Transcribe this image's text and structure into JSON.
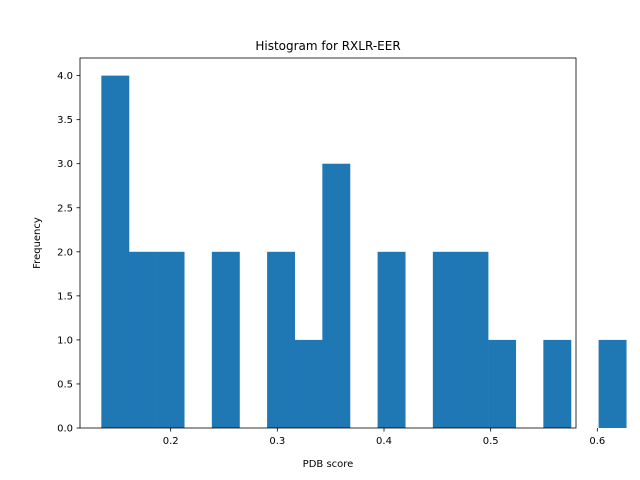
{
  "chart_data": {
    "type": "bar",
    "subtype": "histogram",
    "title": "Histogram for RXLR-EER",
    "xlabel": "PDB score",
    "ylabel": "Frequency",
    "xlim": [
      0.115,
      0.58
    ],
    "ylim": [
      0,
      4.2
    ],
    "x_ticks": [
      0.2,
      0.3,
      0.4,
      0.5,
      0.6
    ],
    "x_tick_labels": [
      "0.2",
      "0.3",
      "0.4",
      "0.5",
      "0.6"
    ],
    "y_ticks": [
      0,
      0.5,
      1,
      1.5,
      2,
      2.5,
      3,
      3.5,
      4
    ],
    "y_tick_labels": [
      "0.0",
      "0.5",
      "1.0",
      "1.5",
      "2.0",
      "2.5",
      "3.0",
      "3.5",
      "4.0"
    ],
    "bin_start": 0.135,
    "bin_width": 0.0259,
    "values": [
      4,
      2,
      2,
      0,
      2,
      0,
      2,
      1,
      3,
      0,
      2,
      0,
      2,
      2,
      1,
      0,
      1,
      0,
      1
    ],
    "grid": false,
    "color": "#1f77b4"
  }
}
